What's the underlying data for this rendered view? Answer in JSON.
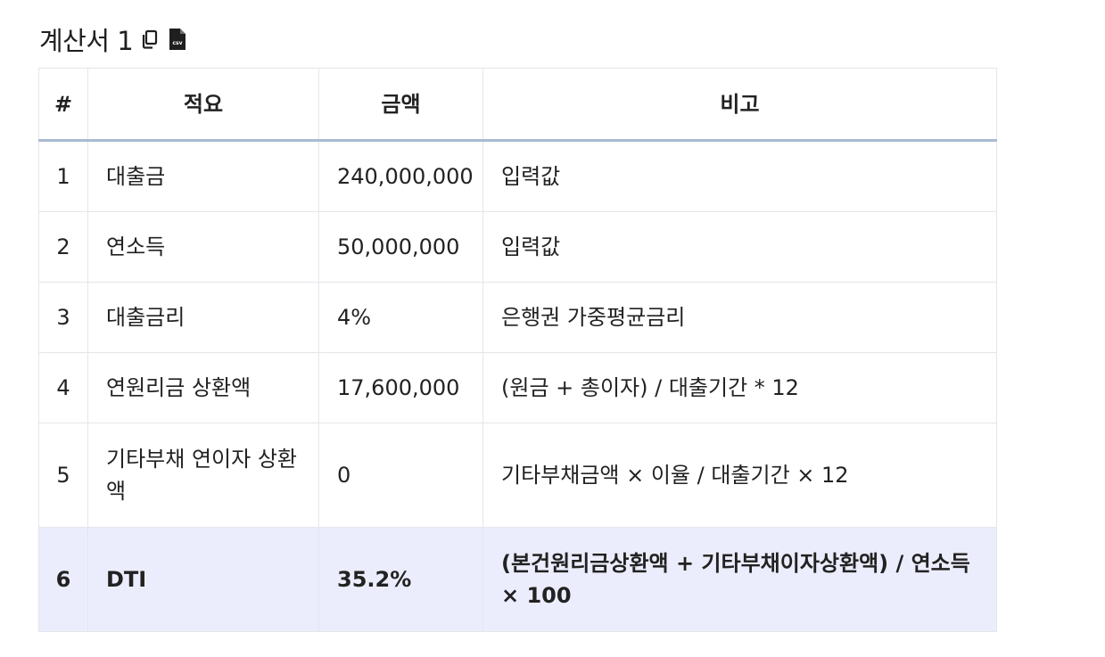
{
  "heading": {
    "title": "계산서 1",
    "copy_icon": "copy-icon",
    "csv_icon": "csv-file-icon"
  },
  "table": {
    "columns": [
      "#",
      "적요",
      "금액",
      "비고"
    ],
    "rows": [
      {
        "no": "1",
        "item": "대출금",
        "amount": "240,000,000",
        "note": "입력값"
      },
      {
        "no": "2",
        "item": "연소득",
        "amount": "50,000,000",
        "note": "입력값"
      },
      {
        "no": "3",
        "item": "대출금리",
        "amount": "4%",
        "note": "은행권 가중평균금리"
      },
      {
        "no": "4",
        "item": "연원리금 상환액",
        "amount": "17,600,000",
        "note": "(원금 + 총이자) / 대출기간 * 12"
      },
      {
        "no": "5",
        "item": "기타부채 연이자 상환액",
        "amount": "0",
        "note": "기타부채금액 × 이율 / 대출기간 × 12"
      },
      {
        "no": "6",
        "item": "DTI",
        "amount": "35.2%",
        "note": "(본건원리금상환액 + 기타부채이자상환액) / 연소득 × 100"
      }
    ]
  },
  "colors": {
    "header_rule": "#a9bad2",
    "border": "#e3e6ea",
    "total_row_bg": "#ecedfc"
  }
}
